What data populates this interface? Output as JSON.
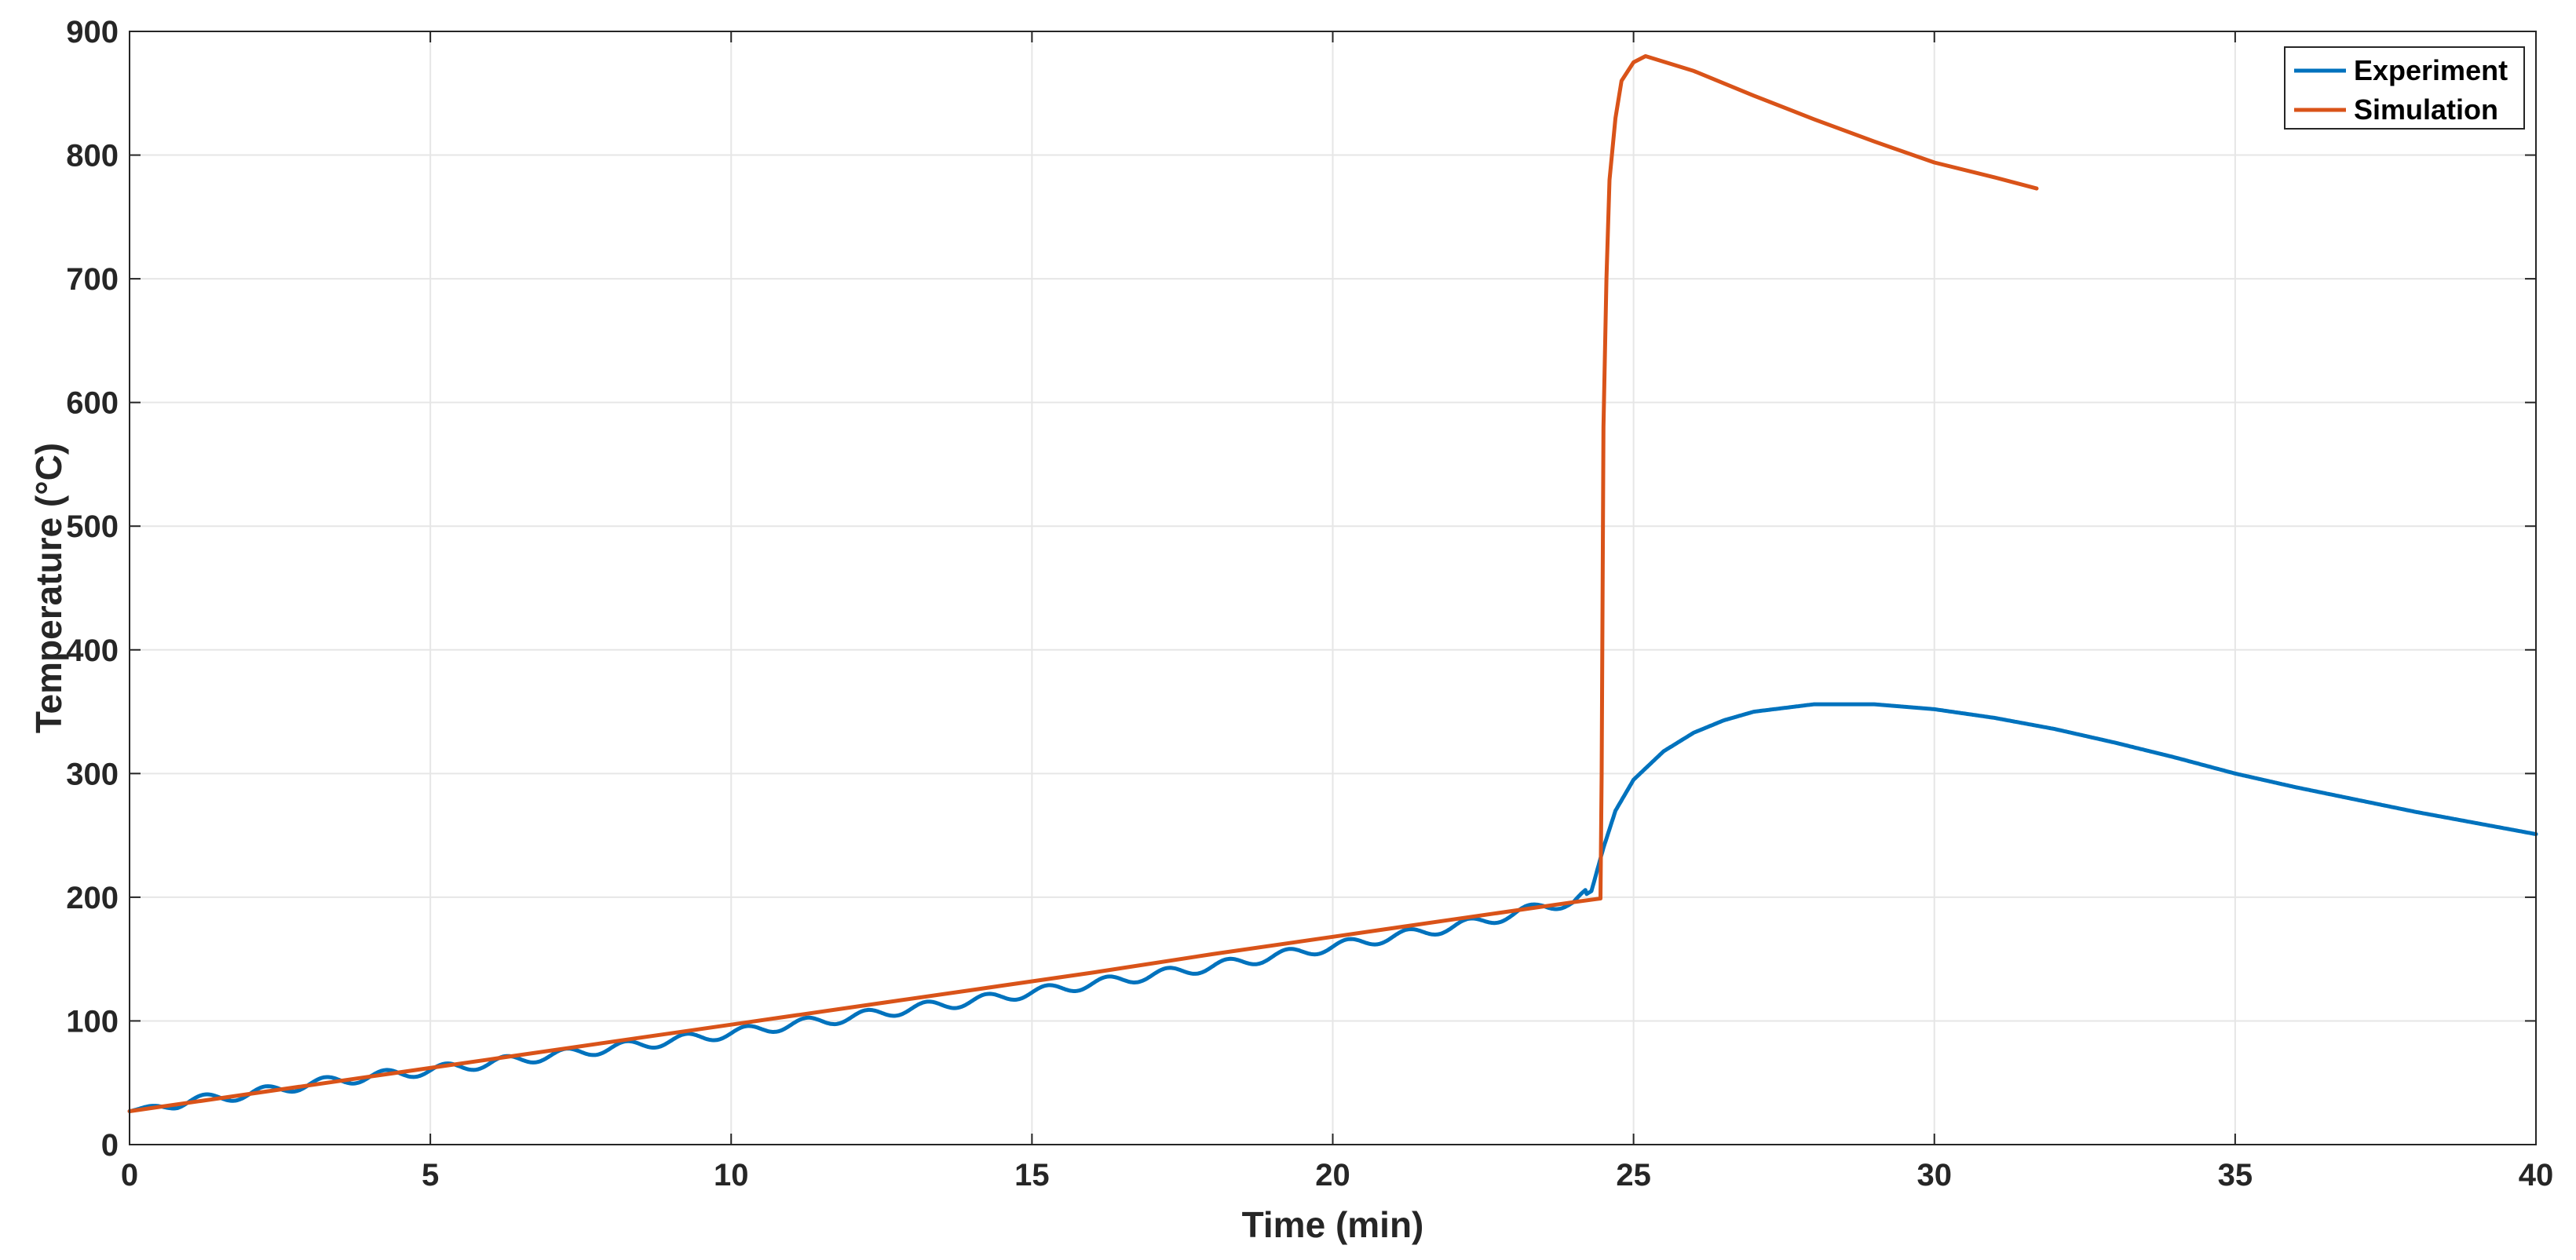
{
  "chart_data": {
    "type": "line",
    "title": "",
    "xlabel": "Time (min)",
    "ylabel": "Temperature (°C)",
    "xlim": [
      0,
      40
    ],
    "ylim": [
      0,
      900
    ],
    "xticks": [
      0,
      5,
      10,
      15,
      20,
      25,
      30,
      35,
      40
    ],
    "yticks": [
      0,
      100,
      200,
      300,
      400,
      500,
      600,
      700,
      800,
      900
    ],
    "xtick_labels": [
      "0",
      "5",
      "10",
      "15",
      "20",
      "25",
      "30",
      "35",
      "40"
    ],
    "ytick_labels": [
      "0",
      "100",
      "200",
      "300",
      "400",
      "500",
      "600",
      "700",
      "800",
      "900"
    ],
    "grid": true,
    "legend": {
      "position": "top-right",
      "entries": [
        "Experiment",
        "Simulation"
      ]
    },
    "series": [
      {
        "name": "Experiment",
        "color": "#0072BD",
        "x": [
          0,
          0.5,
          1.0,
          1.5,
          2.0,
          2.5,
          3.0,
          4.0,
          5.0,
          6.0,
          7.0,
          8.0,
          9.0,
          10.0,
          11.0,
          12.0,
          13.0,
          14.0,
          15.0,
          16.0,
          17.0,
          18.0,
          19.0,
          20.0,
          21.0,
          22.0,
          23.0,
          23.5,
          24.0,
          24.3,
          24.5,
          24.7,
          25.0,
          25.5,
          26.0,
          26.5,
          27.0,
          28.0,
          29.0,
          30.0,
          31.0,
          32.0,
          33.0,
          34.0,
          35.0,
          36.0,
          37.0,
          38.0,
          39.0,
          40.0
        ],
        "y": [
          27,
          31,
          35,
          38,
          41,
          45,
          49,
          55,
          60,
          66,
          72,
          78,
          84,
          90,
          97,
          103,
          110,
          116,
          123,
          130,
          137,
          144,
          152,
          160,
          168,
          176,
          186,
          193,
          196,
          205,
          240,
          270,
          295,
          318,
          333,
          343,
          350,
          356,
          356,
          352,
          345,
          336,
          325,
          313,
          300,
          289,
          279,
          269,
          260,
          251
        ],
        "oscillation": {
          "period_min": 1.0,
          "amplitude": 4
        }
      },
      {
        "name": "Simulation",
        "color": "#D95319",
        "x": [
          0,
          2,
          4,
          6,
          8,
          10,
          12,
          14,
          16,
          18,
          20,
          22,
          24,
          24.45,
          24.47,
          24.5,
          24.55,
          24.6,
          24.7,
          24.8,
          25.0,
          25.2,
          26,
          27,
          28,
          29,
          30,
          31,
          31.7
        ],
        "y": [
          27,
          41,
          55,
          69,
          83,
          97,
          111,
          125,
          139,
          154,
          168,
          182,
          196,
          199,
          300,
          580,
          700,
          780,
          830,
          860,
          875,
          880,
          868,
          848,
          829,
          811,
          794,
          782,
          773
        ]
      }
    ]
  }
}
